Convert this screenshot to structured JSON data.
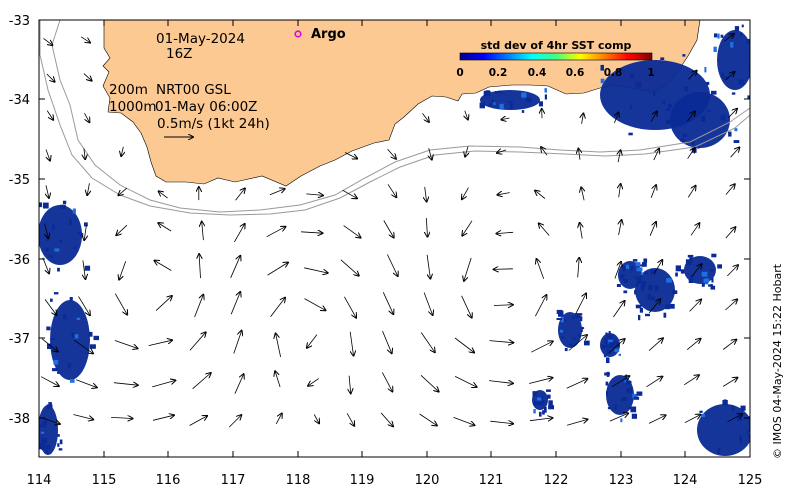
{
  "map": {
    "date_label": "01-May-2024",
    "hour_label": "16Z",
    "depth_label_1": "200m",
    "depth_label_2": "1000m",
    "model_label": "NRT00 GSL",
    "valid_time_label": "01-May 06:00Z",
    "scale_label": "0.5m/s (1kt 24h)",
    "argo_label": "Argo",
    "credit": "© IMOS 04-May-2024 15:22 Hobart",
    "x_ticks": [
      "114",
      "115",
      "116",
      "117",
      "118",
      "119",
      "120",
      "121",
      "122",
      "123",
      "124",
      "125"
    ],
    "y_ticks": [
      "-33",
      "-34",
      "-35",
      "-36",
      "-37",
      "-38"
    ],
    "colors": {
      "land": "#fcc993",
      "sst_patch": "#0a2a96",
      "contour": "#9a9a9a",
      "argo_marker": "#e000e0"
    }
  },
  "colorbar": {
    "title": "std dev of 4hr SST comp",
    "ticks": [
      "0",
      "0.2",
      "0.4",
      "0.6",
      "0.8",
      "1"
    ],
    "colormap": "jet",
    "range": [
      0,
      1
    ]
  }
}
